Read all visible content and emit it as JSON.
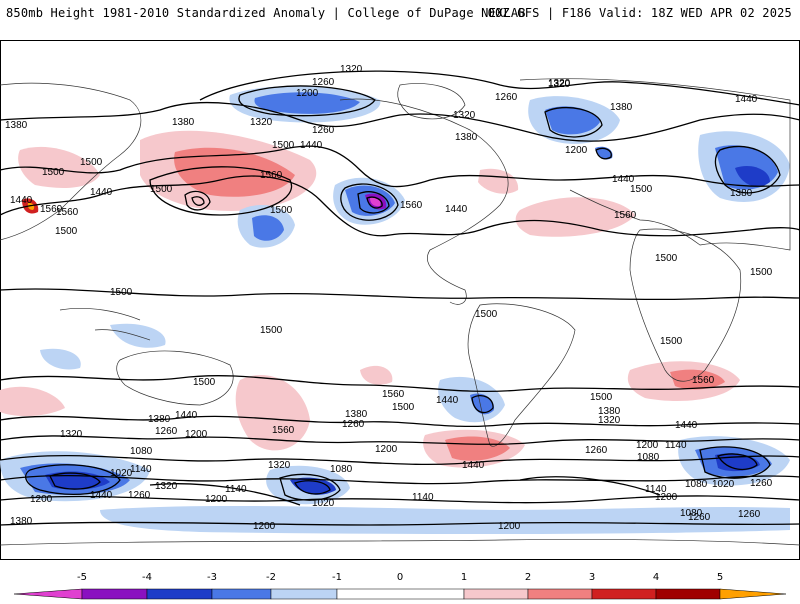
{
  "header": {
    "left": "850mb Height 1981-2010 Standardized Anomaly | College of DuPage NEXLAB",
    "right": "00Z GFS | F186 Valid: 18Z WED APR 02 2025"
  },
  "colors": {
    "neg5": "#e040d0",
    "neg4": "#8a10c0",
    "neg3": "#1e3cc8",
    "neg2": "#4a78e6",
    "neg1": "#bcd4f4",
    "zero": "#ffffff",
    "pos1": "#f6c8cc",
    "pos2": "#f08080",
    "pos3": "#d02020",
    "pos4": "#a00000",
    "pos5": "#ffa000"
  },
  "colorbar": {
    "ticks": [
      "-5",
      "-4",
      "-3",
      "-2",
      "-1",
      "0",
      "1",
      "2",
      "3",
      "4",
      "5"
    ]
  },
  "contour_labels": [
    "1320",
    "1380",
    "1260",
    "1200",
    "1500",
    "1440",
    "1560",
    "1140",
    "1080",
    "1020"
  ]
}
